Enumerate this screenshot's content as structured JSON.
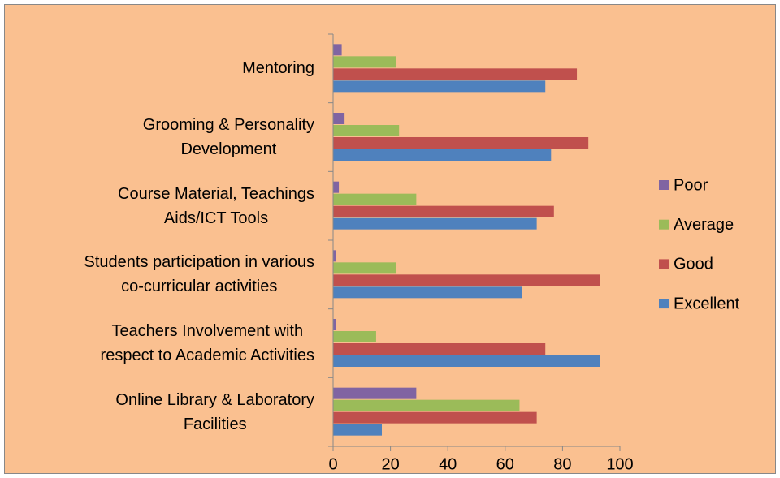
{
  "chart_data": {
    "type": "bar",
    "orientation": "horizontal",
    "categories": [
      "Online Library & Laboratory\nFacilities",
      "Teachers Involvement with\nrespect to Academic Activities",
      "Students  participation in various\nco-curricular activities",
      "Course Material, Teachings\nAids/ICT Tools",
      "Grooming & Personality\nDevelopment",
      "Mentoring"
    ],
    "series": [
      {
        "name": "Excellent",
        "color": "#4f81bd",
        "values": [
          17,
          93,
          66,
          71,
          76,
          74
        ]
      },
      {
        "name": "Good",
        "color": "#c0504d",
        "values": [
          71,
          74,
          93,
          77,
          89,
          85
        ]
      },
      {
        "name": "Average",
        "color": "#9bbb59",
        "values": [
          65,
          15,
          22,
          29,
          23,
          22
        ]
      },
      {
        "name": "Poor",
        "color": "#8064a2",
        "values": [
          29,
          1,
          1,
          2,
          4,
          3
        ]
      }
    ],
    "xlim": [
      0,
      100
    ],
    "xticks": [
      0,
      20,
      40,
      60,
      80,
      100
    ],
    "legend": "right",
    "background": "#fac090"
  }
}
